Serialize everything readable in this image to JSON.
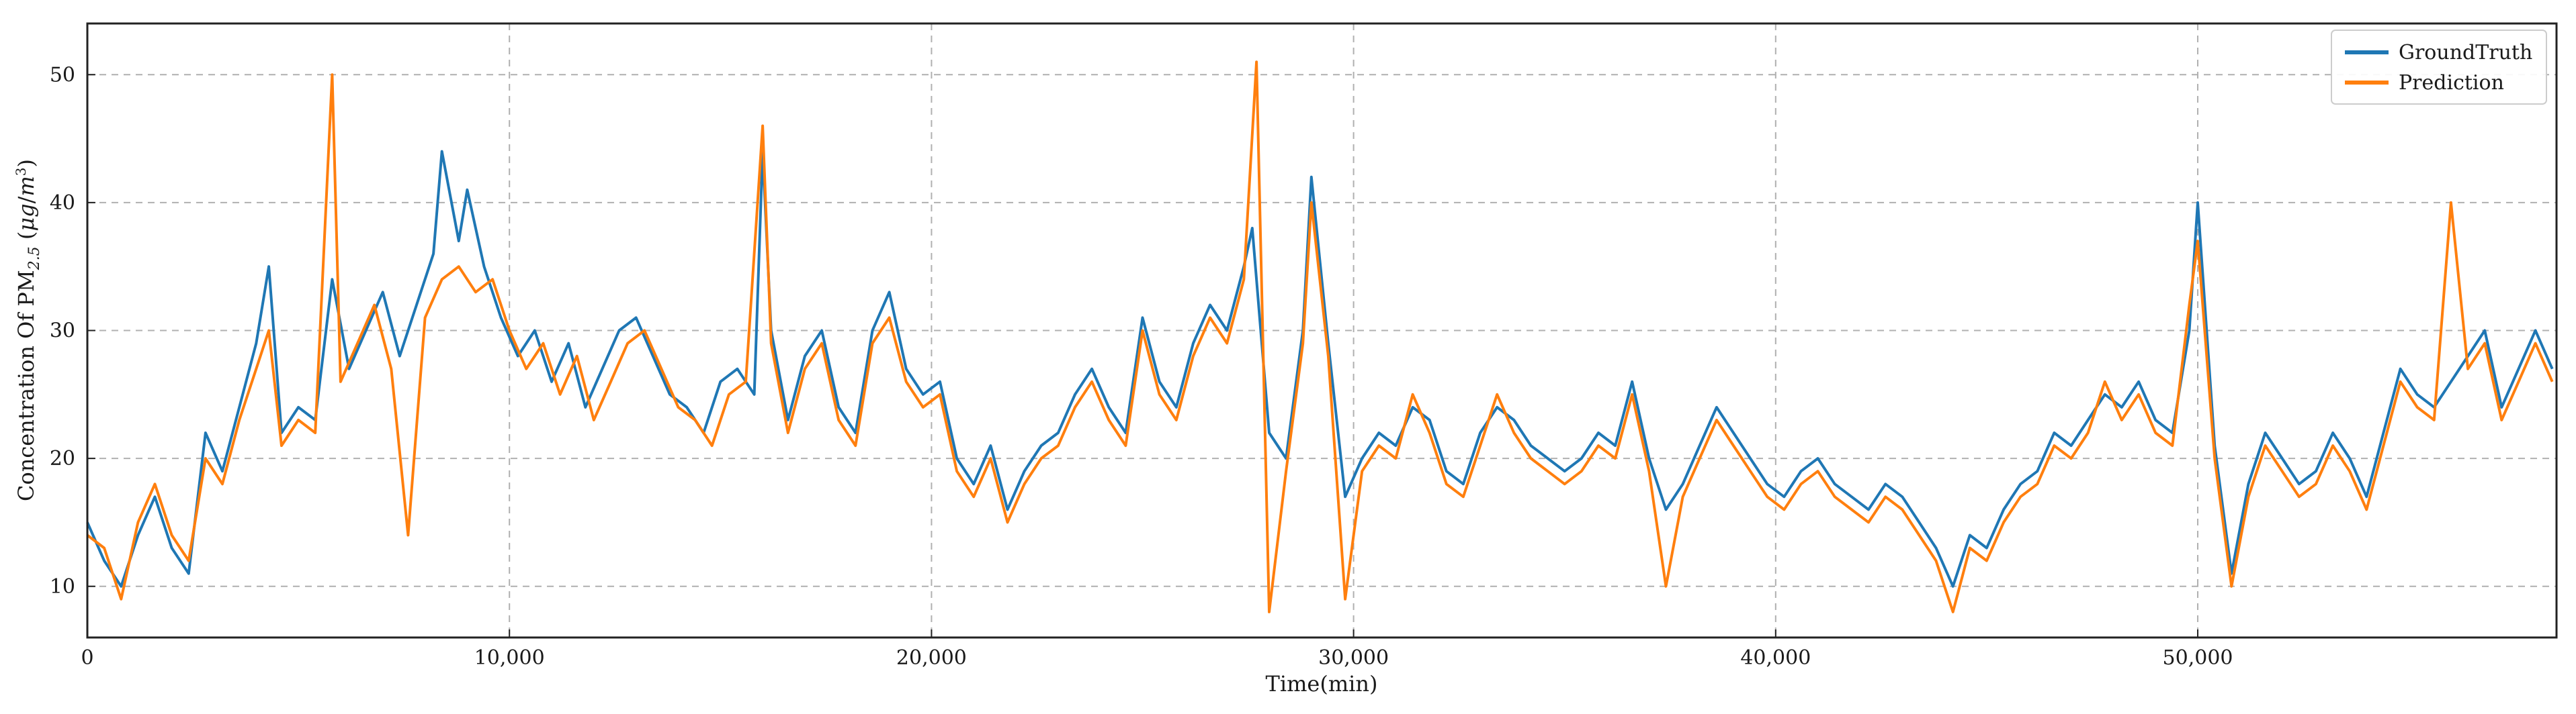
{
  "chart_data": {
    "type": "line",
    "title": "",
    "xlabel": "Time(min)",
    "ylabel": {
      "prefix": "Concentration Of PM",
      "subscript": "2.5",
      "units_open": " (",
      "units_mu": "μg",
      "units_slash": "/",
      "units_m": "m",
      "units_exp": "3",
      "units_close": ")"
    },
    "xlim": [
      0,
      58500
    ],
    "ylim": [
      6,
      54
    ],
    "x_ticks": [
      0,
      10000,
      20000,
      30000,
      40000,
      50000
    ],
    "x_tick_labels": [
      "0",
      "10,000",
      "20,000",
      "30,000",
      "40,000",
      "50,000"
    ],
    "y_ticks": [
      10,
      20,
      30,
      40,
      50
    ],
    "y_tick_labels": [
      "10",
      "20",
      "30",
      "40",
      "50"
    ],
    "grid": true,
    "grid_style": "dashed",
    "legend_position": "top-right",
    "series": [
      {
        "name": "GroundTruth",
        "color": "#1f77b4",
        "points": [
          [
            0,
            15
          ],
          [
            400,
            12
          ],
          [
            800,
            10
          ],
          [
            1200,
            14
          ],
          [
            1600,
            17
          ],
          [
            2000,
            13
          ],
          [
            2400,
            11
          ],
          [
            2800,
            22
          ],
          [
            3200,
            19
          ],
          [
            3600,
            24
          ],
          [
            4000,
            29
          ],
          [
            4300,
            35
          ],
          [
            4600,
            22
          ],
          [
            5000,
            24
          ],
          [
            5400,
            23
          ],
          [
            5800,
            34
          ],
          [
            6200,
            27
          ],
          [
            6600,
            30
          ],
          [
            7000,
            33
          ],
          [
            7400,
            28
          ],
          [
            7800,
            32
          ],
          [
            8200,
            36
          ],
          [
            8400,
            44
          ],
          [
            8800,
            37
          ],
          [
            9000,
            41
          ],
          [
            9400,
            35
          ],
          [
            9800,
            31
          ],
          [
            10200,
            28
          ],
          [
            10600,
            30
          ],
          [
            11000,
            26
          ],
          [
            11400,
            29
          ],
          [
            11800,
            24
          ],
          [
            12200,
            27
          ],
          [
            12600,
            30
          ],
          [
            13000,
            31
          ],
          [
            13400,
            28
          ],
          [
            13800,
            25
          ],
          [
            14200,
            24
          ],
          [
            14600,
            22
          ],
          [
            15000,
            26
          ],
          [
            15400,
            27
          ],
          [
            15800,
            25
          ],
          [
            16000,
            44
          ],
          [
            16200,
            30
          ],
          [
            16600,
            23
          ],
          [
            17000,
            28
          ],
          [
            17400,
            30
          ],
          [
            17800,
            24
          ],
          [
            18200,
            22
          ],
          [
            18600,
            30
          ],
          [
            19000,
            33
          ],
          [
            19400,
            27
          ],
          [
            19800,
            25
          ],
          [
            20200,
            26
          ],
          [
            20600,
            20
          ],
          [
            21000,
            18
          ],
          [
            21400,
            21
          ],
          [
            21800,
            16
          ],
          [
            22200,
            19
          ],
          [
            22600,
            21
          ],
          [
            23000,
            22
          ],
          [
            23400,
            25
          ],
          [
            23800,
            27
          ],
          [
            24200,
            24
          ],
          [
            24600,
            22
          ],
          [
            25000,
            31
          ],
          [
            25400,
            26
          ],
          [
            25800,
            24
          ],
          [
            26200,
            29
          ],
          [
            26600,
            32
          ],
          [
            27000,
            30
          ],
          [
            27400,
            35
          ],
          [
            27600,
            38
          ],
          [
            28000,
            22
          ],
          [
            28400,
            20
          ],
          [
            28800,
            30
          ],
          [
            29000,
            42
          ],
          [
            29400,
            29
          ],
          [
            29800,
            17
          ],
          [
            30200,
            20
          ],
          [
            30600,
            22
          ],
          [
            31000,
            21
          ],
          [
            31400,
            24
          ],
          [
            31800,
            23
          ],
          [
            32200,
            19
          ],
          [
            32600,
            18
          ],
          [
            33000,
            22
          ],
          [
            33400,
            24
          ],
          [
            33800,
            23
          ],
          [
            34200,
            21
          ],
          [
            34600,
            20
          ],
          [
            35000,
            19
          ],
          [
            35400,
            20
          ],
          [
            35800,
            22
          ],
          [
            36200,
            21
          ],
          [
            36600,
            26
          ],
          [
            37000,
            20
          ],
          [
            37400,
            16
          ],
          [
            37800,
            18
          ],
          [
            38200,
            21
          ],
          [
            38600,
            24
          ],
          [
            39000,
            22
          ],
          [
            39400,
            20
          ],
          [
            39800,
            18
          ],
          [
            40200,
            17
          ],
          [
            40600,
            19
          ],
          [
            41000,
            20
          ],
          [
            41400,
            18
          ],
          [
            41800,
            17
          ],
          [
            42200,
            16
          ],
          [
            42600,
            18
          ],
          [
            43000,
            17
          ],
          [
            43400,
            15
          ],
          [
            43800,
            13
          ],
          [
            44200,
            10
          ],
          [
            44600,
            14
          ],
          [
            45000,
            13
          ],
          [
            45400,
            16
          ],
          [
            45800,
            18
          ],
          [
            46200,
            19
          ],
          [
            46600,
            22
          ],
          [
            47000,
            21
          ],
          [
            47400,
            23
          ],
          [
            47800,
            25
          ],
          [
            48200,
            24
          ],
          [
            48600,
            26
          ],
          [
            49000,
            23
          ],
          [
            49400,
            22
          ],
          [
            49800,
            30
          ],
          [
            50000,
            40
          ],
          [
            50400,
            21
          ],
          [
            50800,
            11
          ],
          [
            51200,
            18
          ],
          [
            51600,
            22
          ],
          [
            52000,
            20
          ],
          [
            52400,
            18
          ],
          [
            52800,
            19
          ],
          [
            53200,
            22
          ],
          [
            53600,
            20
          ],
          [
            54000,
            17
          ],
          [
            54400,
            22
          ],
          [
            54800,
            27
          ],
          [
            55200,
            25
          ],
          [
            55600,
            24
          ],
          [
            56000,
            26
          ],
          [
            56400,
            28
          ],
          [
            56800,
            30
          ],
          [
            57200,
            24
          ],
          [
            57600,
            27
          ],
          [
            58000,
            30
          ],
          [
            58400,
            27
          ]
        ]
      },
      {
        "name": "Prediction",
        "color": "#ff7f0e",
        "points": [
          [
            0,
            14
          ],
          [
            400,
            13
          ],
          [
            800,
            9
          ],
          [
            1200,
            15
          ],
          [
            1600,
            18
          ],
          [
            2000,
            14
          ],
          [
            2400,
            12
          ],
          [
            2800,
            20
          ],
          [
            3200,
            18
          ],
          [
            3600,
            23
          ],
          [
            4000,
            27
          ],
          [
            4300,
            30
          ],
          [
            4600,
            21
          ],
          [
            5000,
            23
          ],
          [
            5400,
            22
          ],
          [
            5800,
            50
          ],
          [
            6000,
            26
          ],
          [
            6400,
            29
          ],
          [
            6800,
            32
          ],
          [
            7200,
            27
          ],
          [
            7600,
            14
          ],
          [
            8000,
            31
          ],
          [
            8400,
            34
          ],
          [
            8800,
            35
          ],
          [
            9200,
            33
          ],
          [
            9600,
            34
          ],
          [
            10000,
            30
          ],
          [
            10400,
            27
          ],
          [
            10800,
            29
          ],
          [
            11200,
            25
          ],
          [
            11600,
            28
          ],
          [
            12000,
            23
          ],
          [
            12400,
            26
          ],
          [
            12800,
            29
          ],
          [
            13200,
            30
          ],
          [
            13600,
            27
          ],
          [
            14000,
            24
          ],
          [
            14400,
            23
          ],
          [
            14800,
            21
          ],
          [
            15200,
            25
          ],
          [
            15600,
            26
          ],
          [
            16000,
            46
          ],
          [
            16200,
            29
          ],
          [
            16600,
            22
          ],
          [
            17000,
            27
          ],
          [
            17400,
            29
          ],
          [
            17800,
            23
          ],
          [
            18200,
            21
          ],
          [
            18600,
            29
          ],
          [
            19000,
            31
          ],
          [
            19400,
            26
          ],
          [
            19800,
            24
          ],
          [
            20200,
            25
          ],
          [
            20600,
            19
          ],
          [
            21000,
            17
          ],
          [
            21400,
            20
          ],
          [
            21800,
            15
          ],
          [
            22200,
            18
          ],
          [
            22600,
            20
          ],
          [
            23000,
            21
          ],
          [
            23400,
            24
          ],
          [
            23800,
            26
          ],
          [
            24200,
            23
          ],
          [
            24600,
            21
          ],
          [
            25000,
            30
          ],
          [
            25400,
            25
          ],
          [
            25800,
            23
          ],
          [
            26200,
            28
          ],
          [
            26600,
            31
          ],
          [
            27000,
            29
          ],
          [
            27400,
            34
          ],
          [
            27700,
            51
          ],
          [
            28000,
            8
          ],
          [
            28400,
            19
          ],
          [
            28800,
            29
          ],
          [
            29000,
            40
          ],
          [
            29400,
            28
          ],
          [
            29800,
            9
          ],
          [
            30200,
            19
          ],
          [
            30600,
            21
          ],
          [
            31000,
            20
          ],
          [
            31400,
            25
          ],
          [
            31800,
            22
          ],
          [
            32200,
            18
          ],
          [
            32600,
            17
          ],
          [
            33000,
            21
          ],
          [
            33400,
            25
          ],
          [
            33800,
            22
          ],
          [
            34200,
            20
          ],
          [
            34600,
            19
          ],
          [
            35000,
            18
          ],
          [
            35400,
            19
          ],
          [
            35800,
            21
          ],
          [
            36200,
            20
          ],
          [
            36600,
            25
          ],
          [
            37000,
            19
          ],
          [
            37400,
            10
          ],
          [
            37800,
            17
          ],
          [
            38200,
            20
          ],
          [
            38600,
            23
          ],
          [
            39000,
            21
          ],
          [
            39400,
            19
          ],
          [
            39800,
            17
          ],
          [
            40200,
            16
          ],
          [
            40600,
            18
          ],
          [
            41000,
            19
          ],
          [
            41400,
            17
          ],
          [
            41800,
            16
          ],
          [
            42200,
            15
          ],
          [
            42600,
            17
          ],
          [
            43000,
            16
          ],
          [
            43400,
            14
          ],
          [
            43800,
            12
          ],
          [
            44200,
            8
          ],
          [
            44600,
            13
          ],
          [
            45000,
            12
          ],
          [
            45400,
            15
          ],
          [
            45800,
            17
          ],
          [
            46200,
            18
          ],
          [
            46600,
            21
          ],
          [
            47000,
            20
          ],
          [
            47400,
            22
          ],
          [
            47800,
            26
          ],
          [
            48200,
            23
          ],
          [
            48600,
            25
          ],
          [
            49000,
            22
          ],
          [
            49400,
            21
          ],
          [
            49800,
            32
          ],
          [
            50000,
            37
          ],
          [
            50400,
            20
          ],
          [
            50800,
            10
          ],
          [
            51200,
            17
          ],
          [
            51600,
            21
          ],
          [
            52000,
            19
          ],
          [
            52400,
            17
          ],
          [
            52800,
            18
          ],
          [
            53200,
            21
          ],
          [
            53600,
            19
          ],
          [
            54000,
            16
          ],
          [
            54400,
            21
          ],
          [
            54800,
            26
          ],
          [
            55200,
            24
          ],
          [
            55600,
            23
          ],
          [
            56000,
            40
          ],
          [
            56400,
            27
          ],
          [
            56800,
            29
          ],
          [
            57200,
            23
          ],
          [
            57600,
            26
          ],
          [
            58000,
            29
          ],
          [
            58400,
            26
          ]
        ]
      }
    ]
  }
}
